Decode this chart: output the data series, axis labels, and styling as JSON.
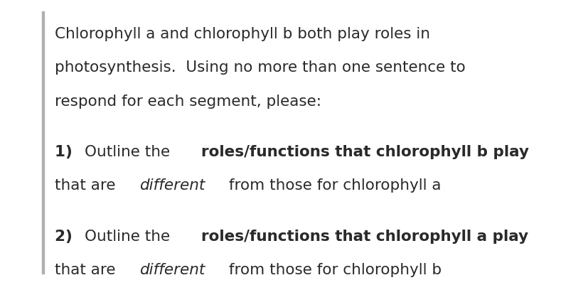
{
  "background_color": "#ffffff",
  "left_bar_color": "#b0b0b0",
  "text_color": "#2a2a2a",
  "font_size": 15.5,
  "figsize": [
    8.27,
    4.01
  ],
  "dpi": 100,
  "paragraph1": [
    "Chlorophyll a and chlorophyll b both play roles in",
    "photosynthesis.  Using no more than one sentence to",
    "respond for each segment, please:"
  ],
  "paragraph2_line1": [
    {
      "text": "1) ",
      "bold": true,
      "italic": false
    },
    {
      "text": "Outline the ",
      "bold": false,
      "italic": false
    },
    {
      "text": "roles/functions that chlorophyll b play",
      "bold": true,
      "italic": false
    }
  ],
  "paragraph2_line2": [
    {
      "text": "that are ",
      "bold": false,
      "italic": false
    },
    {
      "text": "different",
      "bold": false,
      "italic": true
    },
    {
      "text": " from those for chlorophyll a",
      "bold": false,
      "italic": false
    }
  ],
  "paragraph3_line1": [
    {
      "text": "2) ",
      "bold": true,
      "italic": false
    },
    {
      "text": "Outline the ",
      "bold": false,
      "italic": false
    },
    {
      "text": "roles/functions that chlorophyll a play",
      "bold": true,
      "italic": false
    }
  ],
  "paragraph3_line2": [
    {
      "text": "that are ",
      "bold": false,
      "italic": false
    },
    {
      "text": "different",
      "bold": false,
      "italic": true
    },
    {
      "text": " from those for chlorophyll b",
      "bold": false,
      "italic": false
    }
  ]
}
